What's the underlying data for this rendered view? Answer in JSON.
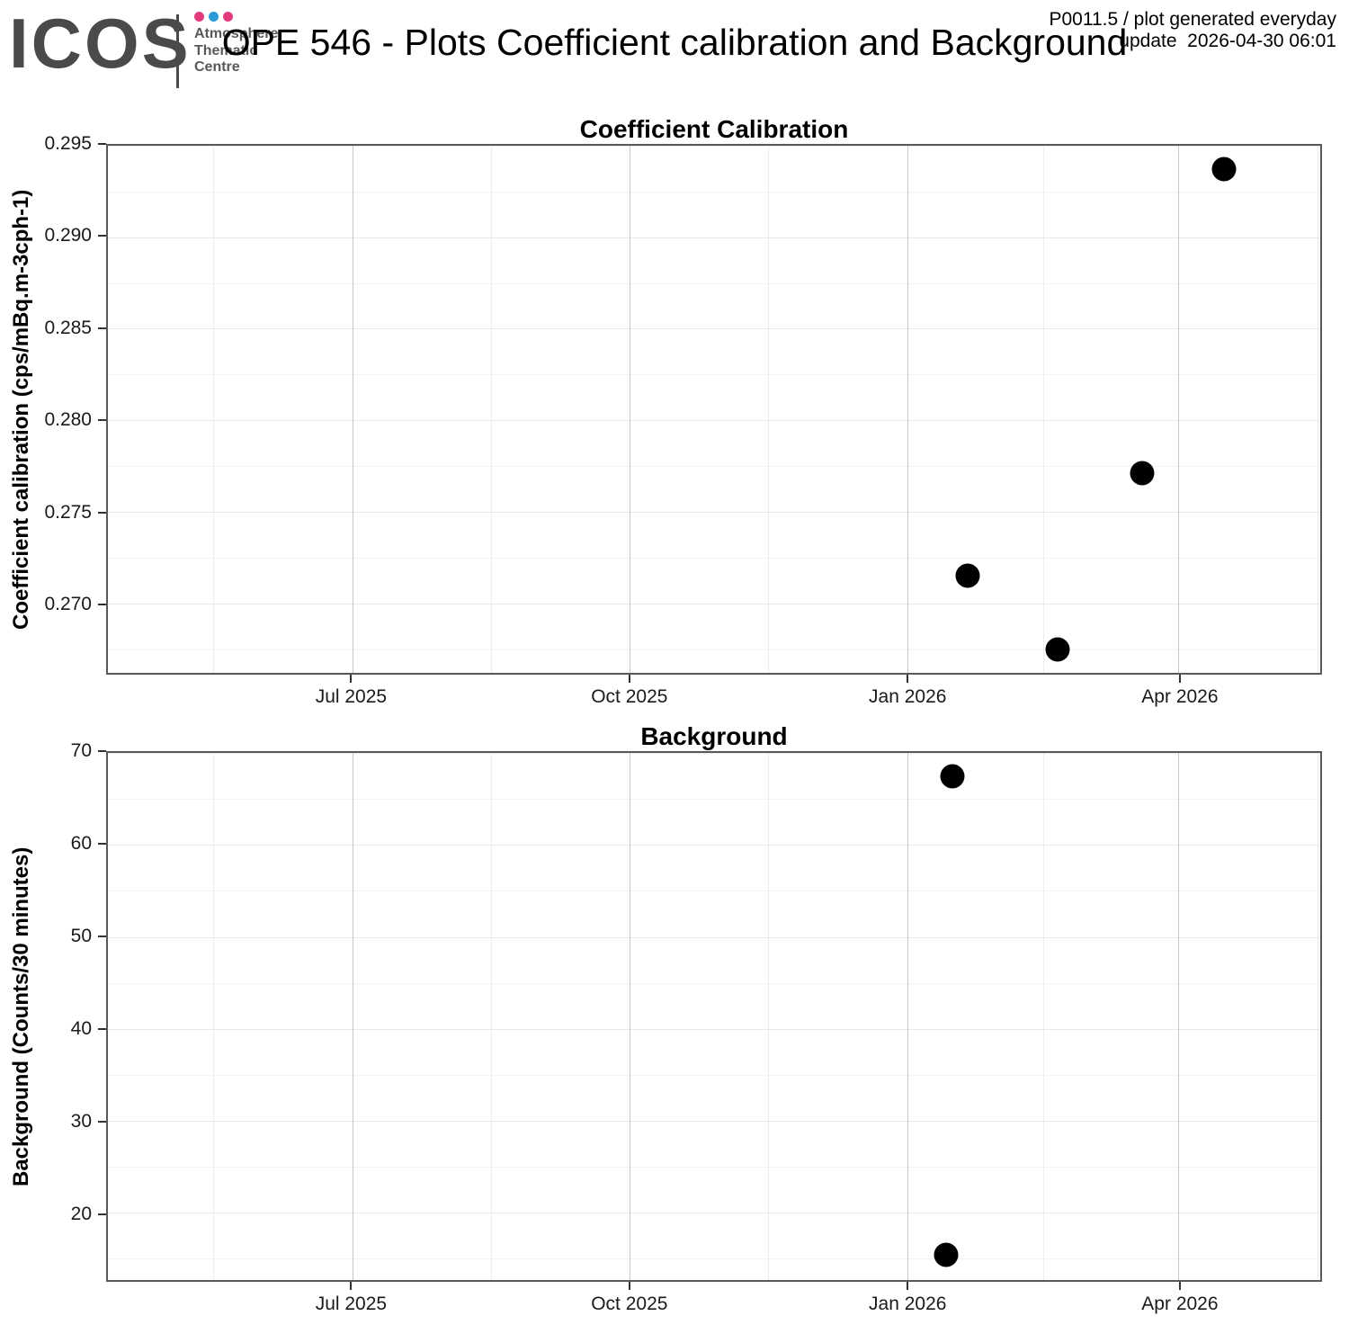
{
  "header": {
    "logo_text": "ICOS",
    "logo_subtitle_lines": [
      "Atmosphere",
      "Thematic",
      "Centre"
    ],
    "logo_dot_colors": [
      "#e5397d",
      "#2b9cd8",
      "#e5397d"
    ],
    "title": "OPE 546 - Plots Coefficient calibration and Background",
    "meta_line1": "P0011.5 / plot generated everyday",
    "meta_line2": "update  2026-04-30 06:01"
  },
  "colors": {
    "point": "#000000",
    "panel_border": "#595959",
    "grid_major_x": "#c6c6c6",
    "grid_minor_x": "#ececec",
    "grid_major_y": "#e9e9e9",
    "grid_minor_y": "#f4f4f4",
    "logo_gray": "#4a4a4a",
    "brand_pink": "#e5397d",
    "brand_blue": "#2b9cd8"
  },
  "chart_data": [
    {
      "type": "scatter",
      "title": "Coefficient Calibration",
      "xlabel": "",
      "ylabel": "Coefficient calibration (cps/mBq.m-3cph-1)",
      "x_type": "date",
      "x_range": [
        "2025-04-11",
        "2026-05-18"
      ],
      "x_major_ticks": [
        {
          "date": "2025-07-01",
          "label": "Jul 2025"
        },
        {
          "date": "2025-10-01",
          "label": "Oct 2025"
        },
        {
          "date": "2026-01-01",
          "label": "Jan 2026"
        },
        {
          "date": "2026-04-01",
          "label": "Apr 2026"
        }
      ],
      "x_minor_ticks": [
        "2025-05-16",
        "2025-08-16",
        "2025-11-16",
        "2026-02-15",
        "2026-05-17"
      ],
      "y_range": [
        0.2662,
        0.295
      ],
      "y_major_ticks": [
        {
          "value": 0.295,
          "label": "0.295"
        },
        {
          "value": 0.29,
          "label": "0.290"
        },
        {
          "value": 0.285,
          "label": "0.285"
        },
        {
          "value": 0.28,
          "label": "0.280"
        },
        {
          "value": 0.275,
          "label": "0.275"
        },
        {
          "value": 0.27,
          "label": "0.270"
        }
      ],
      "y_minor_ticks": [
        0.2925,
        0.2875,
        0.2825,
        0.2775,
        0.2725,
        0.2675
      ],
      "grid": true,
      "legend": "none",
      "points": [
        {
          "date": "2026-01-21",
          "value": 0.2715
        },
        {
          "date": "2026-02-20",
          "value": 0.2675
        },
        {
          "date": "2026-03-20",
          "value": 0.2771
        },
        {
          "date": "2026-04-16",
          "value": 0.2937
        }
      ]
    },
    {
      "type": "scatter",
      "title": "Background",
      "xlabel": "",
      "ylabel": "Background (Counts/30 minutes)",
      "x_type": "date",
      "x_range": [
        "2025-04-11",
        "2026-05-18"
      ],
      "x_major_ticks": [
        {
          "date": "2025-07-01",
          "label": "Jul 2025"
        },
        {
          "date": "2025-10-01",
          "label": "Oct 2025"
        },
        {
          "date": "2026-01-01",
          "label": "Jan 2026"
        },
        {
          "date": "2026-04-01",
          "label": "Apr 2026"
        }
      ],
      "x_minor_ticks": [
        "2025-05-16",
        "2025-08-16",
        "2025-11-16",
        "2026-02-15",
        "2026-05-17"
      ],
      "y_range": [
        12.7,
        70.0
      ],
      "y_major_ticks": [
        {
          "value": 70,
          "label": "70"
        },
        {
          "value": 60,
          "label": "60"
        },
        {
          "value": 50,
          "label": "50"
        },
        {
          "value": 40,
          "label": "40"
        },
        {
          "value": 30,
          "label": "30"
        },
        {
          "value": 20,
          "label": "20"
        }
      ],
      "y_minor_ticks": [
        65,
        55,
        45,
        35,
        25,
        15
      ],
      "grid": true,
      "legend": "none",
      "points": [
        {
          "date": "2026-01-14",
          "value": 15.4
        },
        {
          "date": "2026-01-16",
          "value": 67.5
        }
      ]
    }
  ]
}
